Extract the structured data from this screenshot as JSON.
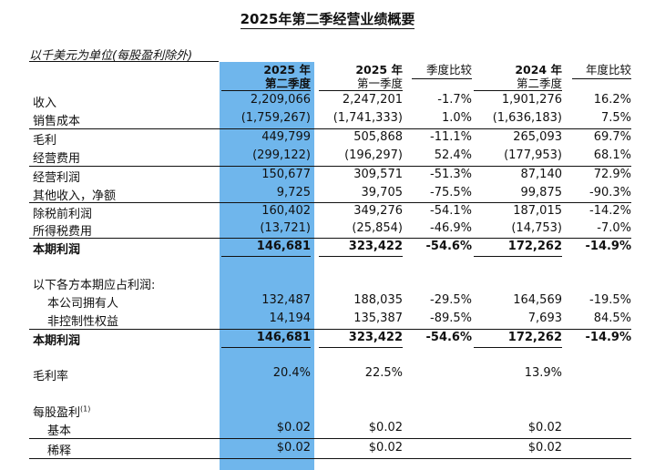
{
  "title": "2025年第二季经营业绩概要",
  "unit_note": "以千美元为单位(每股盈利除外)",
  "headers": {
    "c1": {
      "line1": "2025 年",
      "line2": "第二季度"
    },
    "c2": {
      "line1": "2025 年",
      "line2": "第一季度"
    },
    "c3": {
      "line1": "季度比较"
    },
    "c4": {
      "line1": "2024 年",
      "line2": "第二季度"
    },
    "c5": {
      "line1": "年度比较"
    }
  },
  "rows": [
    {
      "label": "收入",
      "c1": "2,209,066",
      "c2": "2,247,201",
      "c3": "-1.7%",
      "c4": "1,901,276",
      "c5": "16.2%"
    },
    {
      "label": "销售成本",
      "c1": "(1,759,267)",
      "c2": "(1,741,333)",
      "c3": "1.0%",
      "c4": "(1,636,183)",
      "c5": "7.5%"
    },
    {
      "label": "毛利",
      "c1": "449,799",
      "c2": "505,868",
      "c3": "-11.1%",
      "c4": "265,093",
      "c5": "69.7%"
    },
    {
      "label": "经营费用",
      "c1": "(299,122)",
      "c2": "(196,297)",
      "c3": "52.4%",
      "c4": "(177,953)",
      "c5": "68.1%"
    },
    {
      "label": "经营利润",
      "c1": "150,677",
      "c2": "309,571",
      "c3": "-51.3%",
      "c4": "87,140",
      "c5": "72.9%"
    },
    {
      "label": "其他收入，净额",
      "c1": "9,725",
      "c2": "39,705",
      "c3": "-75.5%",
      "c4": "99,875",
      "c5": "-90.3%"
    },
    {
      "label": "除税前利润",
      "c1": "160,402",
      "c2": "349,276",
      "c3": "-54.1%",
      "c4": "187,015",
      "c5": "-14.2%"
    },
    {
      "label": "所得税费用",
      "c1": "(13,721)",
      "c2": "(25,854)",
      "c3": "-46.9%",
      "c4": "(14,753)",
      "c5": "-7.0%"
    },
    {
      "label": "本期利润",
      "c1": "146,681",
      "c2": "323,422",
      "c3": "-54.6%",
      "c4": "172,262",
      "c5": "-14.9%"
    },
    {
      "label": "以下各方本期应占利润:"
    },
    {
      "label": "本公司拥有人",
      "c1": "132,487",
      "c2": "188,035",
      "c3": "-29.5%",
      "c4": "164,569",
      "c5": "-19.5%"
    },
    {
      "label": "非控制性权益",
      "c1": "14,194",
      "c2": "135,387",
      "c3": "-89.5%",
      "c4": "7,693",
      "c5": "84.5%"
    },
    {
      "label": "本期利润",
      "c1": "146,681",
      "c2": "323,422",
      "c3": "-54.6%",
      "c4": "172,262",
      "c5": "-14.9%"
    },
    {
      "label": "毛利率",
      "c1": "20.4%",
      "c2": "22.5%",
      "c4": "13.9%"
    },
    {
      "label": "每股盈利",
      "footnote": "(1)"
    },
    {
      "label": "基本",
      "c1": "$0.02",
      "c2": "$0.02",
      "c4": "$0.02"
    },
    {
      "label": "稀释",
      "c1": "$0.02",
      "c2": "$0.02",
      "c4": "$0.02"
    }
  ]
}
